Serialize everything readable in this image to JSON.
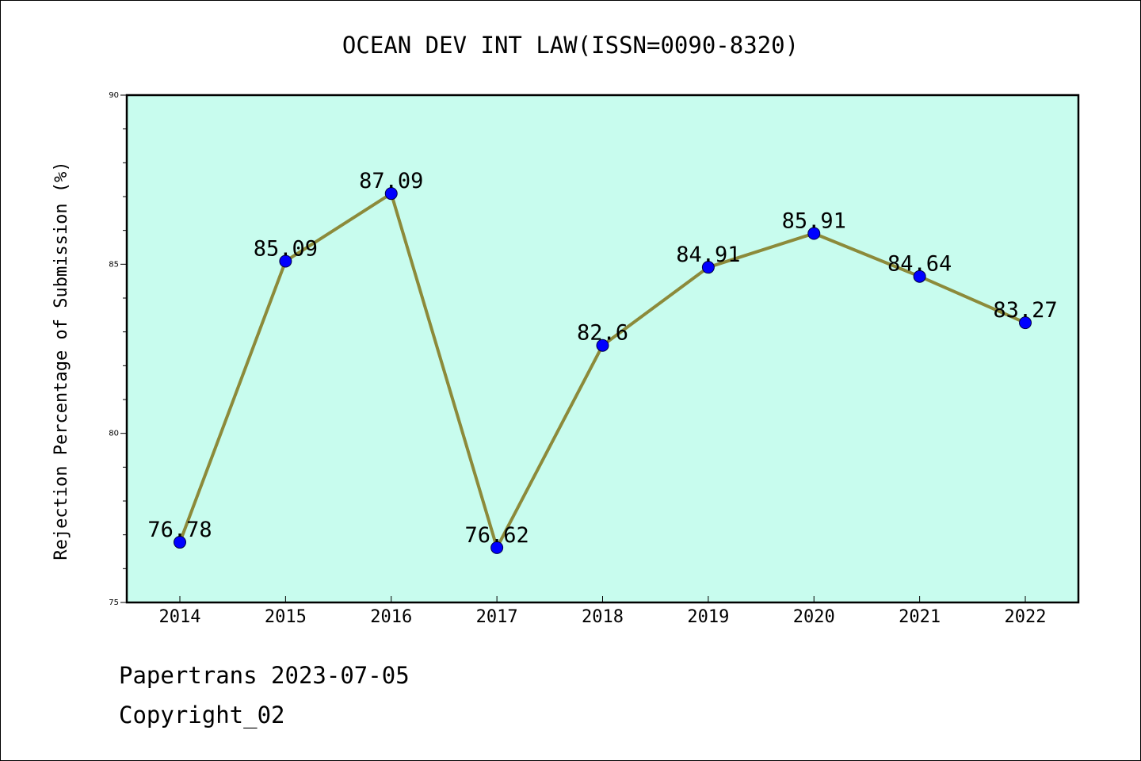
{
  "chart_data": {
    "type": "line",
    "title": "OCEAN DEV INT LAW(ISSN=0090-8320)",
    "xlabel": "",
    "ylabel": "Rejection Percentage of Submission (%)",
    "categories": [
      "2014",
      "2015",
      "2016",
      "2017",
      "2018",
      "2019",
      "2020",
      "2021",
      "2022"
    ],
    "series": [
      {
        "values": [
          76.78,
          85.09,
          87.09,
          76.62,
          82.6,
          84.91,
          85.91,
          84.64,
          83.27
        ],
        "labels": [
          "76.78",
          "85.09",
          "87.09",
          "76.62",
          "82.6",
          "84.91",
          "85.91",
          "84.64",
          "83.27"
        ]
      }
    ],
    "ylim": [
      75,
      90
    ],
    "yticks": [
      75,
      80,
      85,
      90
    ],
    "yticks_labels": [
      "75",
      "80",
      "85",
      "90"
    ],
    "grid": false,
    "legend": "none",
    "colors": {
      "plot_background": "#c8fcee",
      "line": "#8c8a3a",
      "marker": "#0000ff",
      "axis": "#000000"
    }
  },
  "footer": {
    "line1": "Papertrans 2023-07-05",
    "line2": "Copyright_02"
  }
}
